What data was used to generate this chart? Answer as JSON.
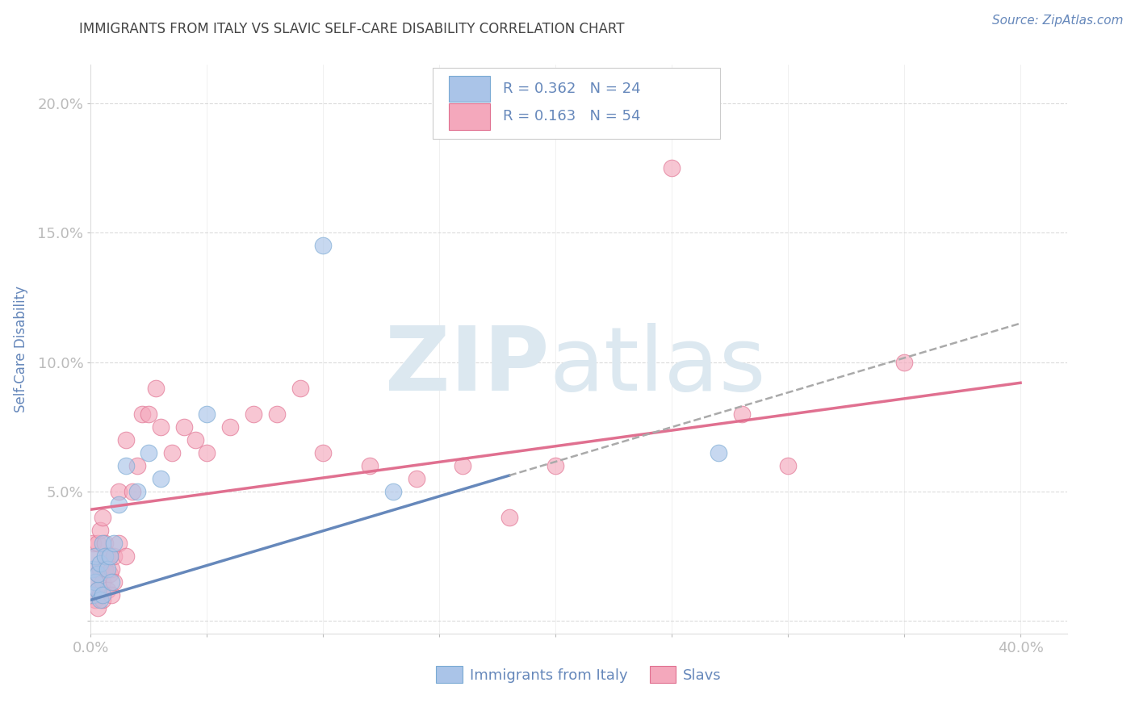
{
  "title": "IMMIGRANTS FROM ITALY VS SLAVIC SELF-CARE DISABILITY CORRELATION CHART",
  "source": "Source: ZipAtlas.com",
  "ylabel": "Self-Care Disability",
  "xlim": [
    0.0,
    0.42
  ],
  "ylim": [
    -0.005,
    0.215
  ],
  "xticks": [
    0.0,
    0.05,
    0.1,
    0.15,
    0.2,
    0.25,
    0.3,
    0.35,
    0.4
  ],
  "yticks": [
    0.0,
    0.05,
    0.1,
    0.15,
    0.2
  ],
  "italy_R": 0.362,
  "italy_N": 24,
  "slavs_R": 0.163,
  "slavs_N": 54,
  "italy_color": "#aac4e8",
  "italy_edge": "#7aaad4",
  "slavs_color": "#f4a8bc",
  "slavs_edge": "#e07090",
  "italy_line_color": "#6688bb",
  "slavs_line_color": "#e07090",
  "background_color": "#ffffff",
  "grid_color": "#cccccc",
  "title_color": "#444444",
  "label_color": "#6688bb",
  "watermark_color": "#dce8f0",
  "italy_x": [
    0.001,
    0.001,
    0.002,
    0.002,
    0.003,
    0.003,
    0.004,
    0.004,
    0.005,
    0.005,
    0.006,
    0.007,
    0.008,
    0.009,
    0.01,
    0.012,
    0.015,
    0.02,
    0.025,
    0.03,
    0.05,
    0.1,
    0.13,
    0.27
  ],
  "italy_y": [
    0.01,
    0.02,
    0.015,
    0.025,
    0.012,
    0.018,
    0.008,
    0.022,
    0.01,
    0.03,
    0.025,
    0.02,
    0.025,
    0.015,
    0.03,
    0.045,
    0.06,
    0.05,
    0.065,
    0.055,
    0.08,
    0.145,
    0.05,
    0.065
  ],
  "slavs_x": [
    0.001,
    0.001,
    0.001,
    0.002,
    0.002,
    0.002,
    0.003,
    0.003,
    0.003,
    0.003,
    0.004,
    0.004,
    0.004,
    0.005,
    0.005,
    0.005,
    0.006,
    0.006,
    0.007,
    0.007,
    0.008,
    0.008,
    0.009,
    0.009,
    0.01,
    0.01,
    0.012,
    0.012,
    0.015,
    0.015,
    0.018,
    0.02,
    0.022,
    0.025,
    0.028,
    0.03,
    0.035,
    0.04,
    0.045,
    0.05,
    0.06,
    0.07,
    0.08,
    0.09,
    0.1,
    0.12,
    0.14,
    0.16,
    0.18,
    0.2,
    0.25,
    0.28,
    0.3,
    0.35
  ],
  "slavs_y": [
    0.01,
    0.02,
    0.03,
    0.008,
    0.015,
    0.025,
    0.005,
    0.012,
    0.018,
    0.03,
    0.01,
    0.02,
    0.035,
    0.008,
    0.015,
    0.04,
    0.02,
    0.03,
    0.012,
    0.025,
    0.018,
    0.025,
    0.01,
    0.02,
    0.015,
    0.025,
    0.03,
    0.05,
    0.025,
    0.07,
    0.05,
    0.06,
    0.08,
    0.08,
    0.09,
    0.075,
    0.065,
    0.075,
    0.07,
    0.065,
    0.075,
    0.08,
    0.08,
    0.09,
    0.065,
    0.06,
    0.055,
    0.06,
    0.04,
    0.06,
    0.175,
    0.08,
    0.06,
    0.1
  ],
  "italy_trend_x": [
    0.0,
    0.4
  ],
  "italy_trend_y": [
    0.008,
    0.115
  ],
  "slavs_trend_x": [
    0.0,
    0.4
  ],
  "slavs_trend_y": [
    0.043,
    0.092
  ]
}
